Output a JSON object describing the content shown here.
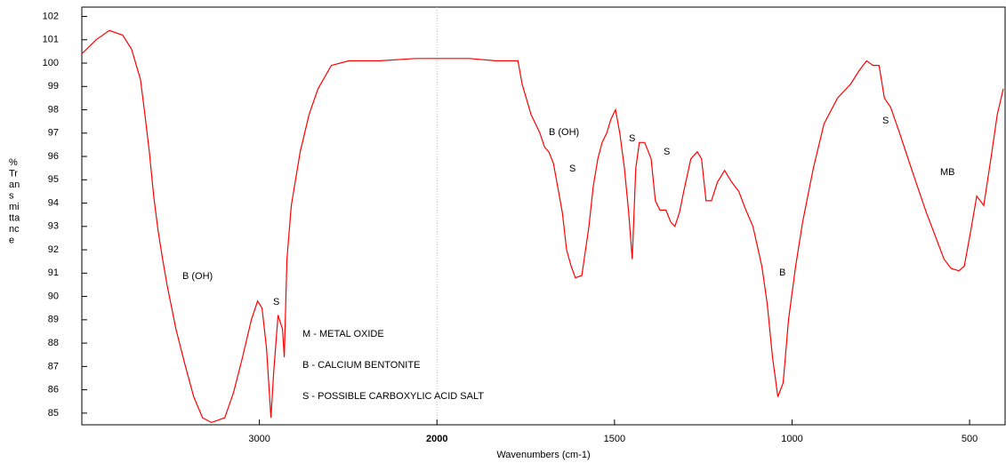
{
  "chart_data": {
    "type": "line",
    "x_label": "Wavenumbers (cm-1)",
    "y_label_lines": [
      "%",
      "Tr",
      "an",
      "s",
      "mi",
      "tta",
      "nc",
      "e"
    ],
    "color": "#ff0000",
    "xlim": [
      4000,
      400
    ],
    "x_scale_break": 2000,
    "xticks": [
      3000,
      2000,
      1500,
      1000,
      500
    ],
    "ylim": [
      84.5,
      102.4
    ],
    "yticks": [
      85,
      86,
      87,
      88,
      89,
      90,
      91,
      92,
      93,
      94,
      95,
      96,
      97,
      98,
      99,
      100,
      101,
      102
    ],
    "annotations": [
      "B (OH)",
      "S",
      "M - METAL OXIDE",
      "B - CALCIUM BENTONITE",
      "S - POSSIBLE CARBOXYLIC ACID SALT",
      "B (OH)",
      "S",
      "S",
      "S",
      "B",
      "S",
      "MB"
    ],
    "x": [
      4000,
      3920,
      3845,
      3770,
      3720,
      3670,
      3645,
      3620,
      3595,
      3570,
      3545,
      3520,
      3470,
      3420,
      3370,
      3320,
      3270,
      3195,
      3145,
      3095,
      3045,
      3010,
      2985,
      2960,
      2935,
      2920,
      2895,
      2870,
      2860,
      2845,
      2820,
      2770,
      2720,
      2670,
      2595,
      2495,
      2320,
      2120,
      2000,
      1910,
      1835,
      1772,
      1760,
      1735,
      1710,
      1697,
      1685,
      1672,
      1660,
      1647,
      1635,
      1622,
      1610,
      1592,
      1572,
      1560,
      1547,
      1535,
      1522,
      1510,
      1497,
      1485,
      1472,
      1460,
      1450,
      1440,
      1430,
      1415,
      1397,
      1385,
      1372,
      1355,
      1342,
      1330,
      1317,
      1305,
      1285,
      1267,
      1255,
      1242,
      1227,
      1210,
      1190,
      1170,
      1150,
      1130,
      1110,
      1085,
      1070,
      1055,
      1040,
      1025,
      1010,
      990,
      970,
      940,
      910,
      872,
      835,
      810,
      790,
      772,
      755,
      740,
      722,
      697,
      660,
      622,
      597,
      572,
      552,
      530,
      515,
      497,
      480,
      460,
      440,
      422,
      405
    ],
    "values": [
      100.4,
      101.0,
      101.4,
      101.2,
      100.6,
      99.3,
      97.8,
      96.2,
      94.3,
      92.8,
      91.6,
      90.5,
      88.6,
      87.1,
      85.7,
      84.8,
      84.6,
      84.8,
      85.9,
      87.4,
      89.0,
      89.8,
      89.5,
      87.8,
      84.8,
      86.7,
      89.2,
      88.6,
      87.4,
      91.6,
      93.9,
      96.2,
      97.8,
      98.9,
      99.9,
      100.1,
      100.1,
      100.2,
      100.2,
      100.2,
      100.1,
      100.1,
      99.1,
      97.8,
      97.0,
      96.4,
      96.2,
      95.7,
      94.7,
      93.6,
      92.0,
      91.3,
      90.8,
      90.9,
      93.0,
      94.7,
      95.9,
      96.6,
      97.0,
      97.6,
      98.0,
      97.0,
      95.5,
      93.6,
      91.6,
      95.5,
      96.6,
      96.6,
      95.9,
      94.1,
      93.7,
      93.7,
      93.2,
      93.0,
      93.6,
      94.5,
      95.9,
      96.2,
      95.9,
      94.1,
      94.1,
      94.9,
      95.4,
      94.9,
      94.5,
      93.7,
      93.0,
      91.3,
      89.7,
      87.4,
      85.7,
      86.3,
      89.0,
      91.3,
      93.2,
      95.5,
      97.4,
      98.5,
      99.1,
      99.7,
      100.1,
      99.9,
      99.9,
      98.5,
      98.1,
      97.0,
      95.3,
      93.6,
      92.6,
      91.6,
      91.2,
      91.1,
      91.3,
      92.8,
      94.3,
      93.9,
      95.9,
      97.8,
      98.9
    ]
  }
}
